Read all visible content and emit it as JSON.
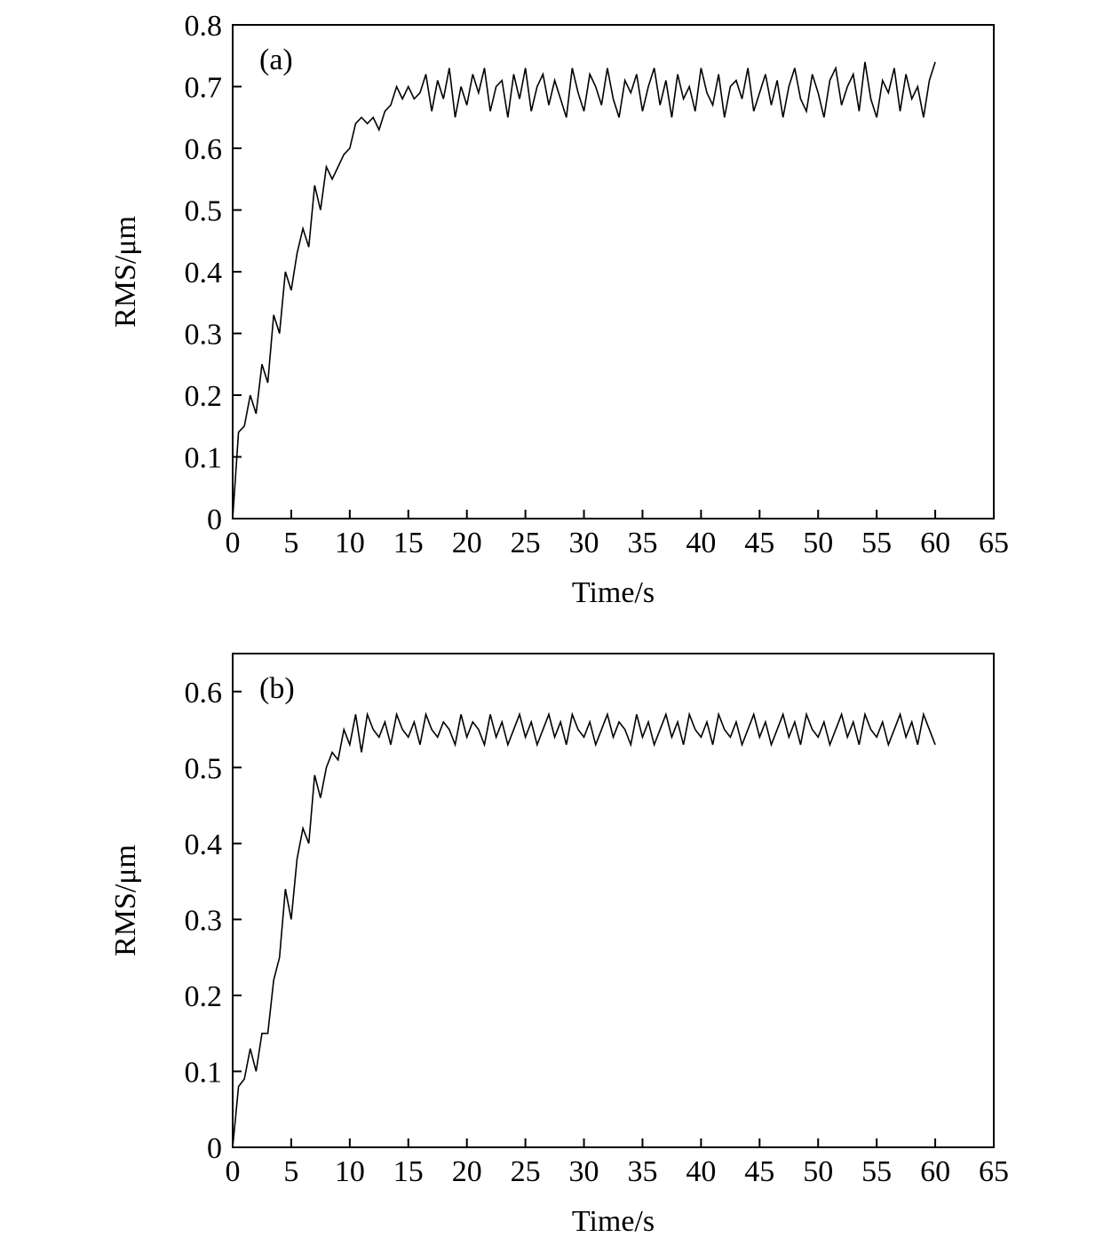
{
  "chart_data": [
    {
      "type": "line",
      "annotation": "(a)",
      "xlabel": "Time/s",
      "ylabel": "RMS/μm",
      "xlim": [
        0,
        65
      ],
      "xticks": [
        0,
        5,
        10,
        15,
        20,
        25,
        30,
        35,
        40,
        45,
        50,
        55,
        60,
        65
      ],
      "ylim": [
        0,
        0.8
      ],
      "yticks": [
        0,
        0.1,
        0.2,
        0.3,
        0.4,
        0.5,
        0.6,
        0.7,
        0.8
      ],
      "x": [
        0,
        0.5,
        1,
        1.5,
        2,
        2.5,
        3,
        3.5,
        4,
        4.5,
        5,
        5.5,
        6,
        6.5,
        7,
        7.5,
        8,
        8.5,
        9,
        9.5,
        10,
        10.5,
        11,
        11.5,
        12,
        12.5,
        13,
        13.5,
        14,
        14.5,
        15,
        15.5,
        16,
        16.5,
        17,
        17.5,
        18,
        18.5,
        19,
        19.5,
        20,
        20.5,
        21,
        21.5,
        22,
        22.5,
        23,
        23.5,
        24,
        24.5,
        25,
        25.5,
        26,
        26.5,
        27,
        27.5,
        28,
        28.5,
        29,
        29.5,
        30,
        30.5,
        31,
        31.5,
        32,
        32.5,
        33,
        33.5,
        34,
        34.5,
        35,
        35.5,
        36,
        36.5,
        37,
        37.5,
        38,
        38.5,
        39,
        39.5,
        40,
        40.5,
        41,
        41.5,
        42,
        42.5,
        43,
        43.5,
        44,
        44.5,
        45,
        45.5,
        46,
        46.5,
        47,
        47.5,
        48,
        48.5,
        49,
        49.5,
        50,
        50.5,
        51,
        51.5,
        52,
        52.5,
        53,
        53.5,
        54,
        54.5,
        55,
        55.5,
        56,
        56.5,
        57,
        57.5,
        58,
        58.5,
        59,
        59.5,
        60
      ],
      "series": [
        {
          "color": "#000000",
          "values": [
            0,
            0.14,
            0.15,
            0.2,
            0.17,
            0.25,
            0.22,
            0.33,
            0.3,
            0.4,
            0.37,
            0.43,
            0.47,
            0.44,
            0.54,
            0.5,
            0.57,
            0.55,
            0.57,
            0.59,
            0.6,
            0.64,
            0.65,
            0.64,
            0.65,
            0.63,
            0.66,
            0.67,
            0.7,
            0.68,
            0.7,
            0.68,
            0.69,
            0.72,
            0.66,
            0.71,
            0.68,
            0.73,
            0.65,
            0.7,
            0.67,
            0.72,
            0.69,
            0.73,
            0.66,
            0.7,
            0.71,
            0.65,
            0.72,
            0.68,
            0.73,
            0.66,
            0.7,
            0.72,
            0.67,
            0.71,
            0.68,
            0.65,
            0.73,
            0.69,
            0.66,
            0.72,
            0.7,
            0.67,
            0.73,
            0.68,
            0.65,
            0.71,
            0.69,
            0.72,
            0.66,
            0.7,
            0.73,
            0.67,
            0.71,
            0.65,
            0.72,
            0.68,
            0.7,
            0.66,
            0.73,
            0.69,
            0.67,
            0.72,
            0.65,
            0.7,
            0.71,
            0.68,
            0.73,
            0.66,
            0.69,
            0.72,
            0.67,
            0.71,
            0.65,
            0.7,
            0.73,
            0.68,
            0.66,
            0.72,
            0.69,
            0.65,
            0.71,
            0.73,
            0.67,
            0.7,
            0.72,
            0.66,
            0.74,
            0.68,
            0.65,
            0.71,
            0.69,
            0.73,
            0.66,
            0.72,
            0.68,
            0.7,
            0.65,
            0.71,
            0.74
          ]
        }
      ]
    },
    {
      "type": "line",
      "annotation": "(b)",
      "xlabel": "Time/s",
      "ylabel": "RMS/μm",
      "xlim": [
        0,
        65
      ],
      "xticks": [
        0,
        5,
        10,
        15,
        20,
        25,
        30,
        35,
        40,
        45,
        50,
        55,
        60,
        65
      ],
      "ylim": [
        0,
        0.65
      ],
      "yticks": [
        0,
        0.1,
        0.2,
        0.3,
        0.4,
        0.5,
        0.6
      ],
      "x": [
        0,
        0.5,
        1,
        1.5,
        2,
        2.5,
        3,
        3.5,
        4,
        4.5,
        5,
        5.5,
        6,
        6.5,
        7,
        7.5,
        8,
        8.5,
        9,
        9.5,
        10,
        10.5,
        11,
        11.5,
        12,
        12.5,
        13,
        13.5,
        14,
        14.5,
        15,
        15.5,
        16,
        16.5,
        17,
        17.5,
        18,
        18.5,
        19,
        19.5,
        20,
        20.5,
        21,
        21.5,
        22,
        22.5,
        23,
        23.5,
        24,
        24.5,
        25,
        25.5,
        26,
        26.5,
        27,
        27.5,
        28,
        28.5,
        29,
        29.5,
        30,
        30.5,
        31,
        31.5,
        32,
        32.5,
        33,
        33.5,
        34,
        34.5,
        35,
        35.5,
        36,
        36.5,
        37,
        37.5,
        38,
        38.5,
        39,
        39.5,
        40,
        40.5,
        41,
        41.5,
        42,
        42.5,
        43,
        43.5,
        44,
        44.5,
        45,
        45.5,
        46,
        46.5,
        47,
        47.5,
        48,
        48.5,
        49,
        49.5,
        50,
        50.5,
        51,
        51.5,
        52,
        52.5,
        53,
        53.5,
        54,
        54.5,
        55,
        55.5,
        56,
        56.5,
        57,
        57.5,
        58,
        58.5,
        59,
        59.5,
        60
      ],
      "series": [
        {
          "color": "#000000",
          "values": [
            0,
            0.08,
            0.09,
            0.13,
            0.1,
            0.15,
            0.15,
            0.22,
            0.25,
            0.34,
            0.3,
            0.38,
            0.42,
            0.4,
            0.49,
            0.46,
            0.5,
            0.52,
            0.51,
            0.55,
            0.53,
            0.57,
            0.52,
            0.57,
            0.55,
            0.54,
            0.56,
            0.53,
            0.57,
            0.55,
            0.54,
            0.56,
            0.53,
            0.57,
            0.55,
            0.54,
            0.56,
            0.55,
            0.53,
            0.57,
            0.54,
            0.56,
            0.55,
            0.53,
            0.57,
            0.54,
            0.56,
            0.53,
            0.55,
            0.57,
            0.54,
            0.56,
            0.53,
            0.55,
            0.57,
            0.54,
            0.56,
            0.53,
            0.57,
            0.55,
            0.54,
            0.56,
            0.53,
            0.55,
            0.57,
            0.54,
            0.56,
            0.55,
            0.53,
            0.57,
            0.54,
            0.56,
            0.53,
            0.55,
            0.57,
            0.54,
            0.56,
            0.53,
            0.57,
            0.55,
            0.54,
            0.56,
            0.53,
            0.57,
            0.55,
            0.54,
            0.56,
            0.53,
            0.55,
            0.57,
            0.54,
            0.56,
            0.53,
            0.55,
            0.57,
            0.54,
            0.56,
            0.53,
            0.57,
            0.55,
            0.54,
            0.56,
            0.53,
            0.55,
            0.57,
            0.54,
            0.56,
            0.53,
            0.57,
            0.55,
            0.54,
            0.56,
            0.53,
            0.55,
            0.57,
            0.54,
            0.56,
            0.53,
            0.57,
            0.55,
            0.53
          ]
        }
      ]
    }
  ]
}
